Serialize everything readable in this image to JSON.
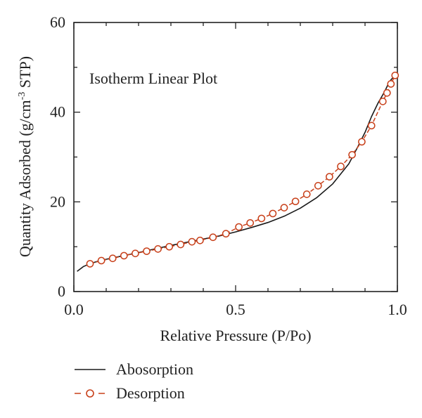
{
  "chart_data": {
    "type": "line",
    "title": "",
    "annotation": "Isotherm Linear Plot",
    "xlabel": "Relative Pressure (P/Po)",
    "ylabel": "Quantity Adsorbed (g/cm",
    "ylabel_sup": "-3",
    "ylabel_end": " STP)",
    "xlim": [
      0.0,
      1.0
    ],
    "ylim": [
      0,
      60
    ],
    "xticks": [
      0.0,
      0.5,
      1.0
    ],
    "xtick_labels": [
      "0.0",
      "0.5",
      "1.0"
    ],
    "yticks": [
      0,
      20,
      40,
      60
    ],
    "ytick_labels": [
      "0",
      "20",
      "40",
      "60"
    ],
    "legend_position": "bottom-left, below plot",
    "colors": {
      "absorption": "#1a1a1a",
      "desorption": "#c8401a",
      "axis": "#222222"
    },
    "series": [
      {
        "name": "Abosorption",
        "style": "solid line",
        "x": [
          0.01,
          0.03,
          0.05,
          0.08,
          0.12,
          0.16,
          0.2,
          0.25,
          0.3,
          0.35,
          0.4,
          0.45,
          0.5,
          0.55,
          0.6,
          0.65,
          0.7,
          0.75,
          0.8,
          0.85,
          0.88,
          0.9,
          0.92,
          0.94,
          0.96,
          0.97,
          0.98,
          0.99
        ],
        "y": [
          4.5,
          5.6,
          6.2,
          6.9,
          7.5,
          8.1,
          8.7,
          9.5,
          10.3,
          11.0,
          11.7,
          12.4,
          13.3,
          14.3,
          15.4,
          16.8,
          18.6,
          20.9,
          24.0,
          28.5,
          32.6,
          35.5,
          39.0,
          42.0,
          44.5,
          46.0,
          47.2,
          48.0
        ]
      },
      {
        "name": "Desorption",
        "style": "dashed line with open circles",
        "x": [
          0.05,
          0.085,
          0.12,
          0.155,
          0.19,
          0.225,
          0.26,
          0.295,
          0.33,
          0.365,
          0.39,
          0.43,
          0.47,
          0.51,
          0.545,
          0.58,
          0.615,
          0.65,
          0.685,
          0.72,
          0.755,
          0.79,
          0.825,
          0.86,
          0.89,
          0.92,
          0.955,
          0.968,
          0.98,
          0.993
        ],
        "y": [
          6.2,
          6.9,
          7.4,
          8.0,
          8.5,
          9.0,
          9.5,
          10.0,
          10.5,
          11.1,
          11.4,
          12.1,
          12.9,
          14.4,
          15.3,
          16.3,
          17.4,
          18.7,
          20.1,
          21.7,
          23.6,
          25.6,
          27.9,
          30.5,
          33.4,
          37.0,
          42.4,
          44.3,
          46.3,
          48.2
        ]
      }
    ]
  }
}
